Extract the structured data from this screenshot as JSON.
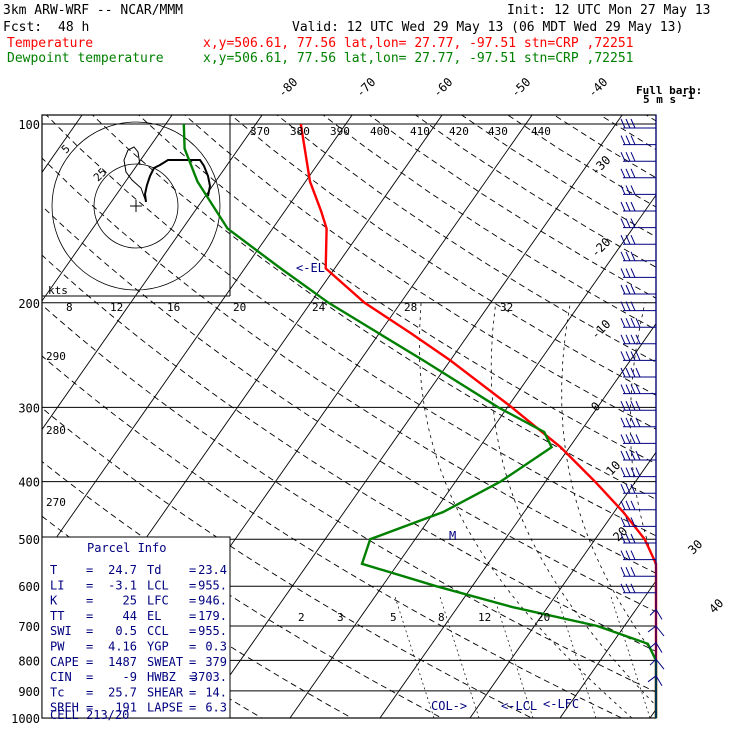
{
  "header": {
    "model": "3km ARW-WRF -- NCAR/MMM",
    "init": "Init: 12 UTC Mon 27 May 13",
    "fcst_label": "Fcst:",
    "fcst_value": "48 h",
    "valid": "Valid: 12 UTC Wed 29 May 13 (06 MDT Wed 29 May 13)",
    "temperature_label": "Temperature",
    "temperature_info": "x,y=506.61, 77.56   lat,lon= 27.77, -97.51   stn=CRP ,72251",
    "dewpoint_label": "Dewpoint temperature",
    "dewpoint_info": "x,y=506.61, 77.56   lat,lon= 27.77, -97.51   stn=CRP ,72251"
  },
  "colors": {
    "temperature": "#ff0000",
    "dewpoint": "#008000",
    "frame": "#000000",
    "wind_barbs": "#000080",
    "parcel_text": "#000080"
  },
  "wind_legend": {
    "line1": "Full barb:",
    "line2": "5 m s",
    "exponent": "-1"
  },
  "chart_data": {
    "type": "skew-T log-P sounding",
    "pressure_levels_hPa": [
      100,
      200,
      300,
      400,
      500,
      600,
      700,
      800,
      900,
      1000
    ],
    "pressure_tick_labels": [
      "100",
      "200",
      "300",
      "400",
      "500",
      "600",
      "700",
      "800",
      "900",
      "1000"
    ],
    "isotherm_labels": [
      "-80",
      "-70",
      "-60",
      "-50",
      "-40",
      "-30",
      "-20",
      "-10",
      "0",
      "10",
      "20",
      "30",
      "40"
    ],
    "theta_labels": [
      "370",
      "380",
      "390",
      "400",
      "410",
      "420",
      "430",
      "440",
      "290",
      "280",
      "270"
    ],
    "mixing_ratio_labels": [
      "2",
      "3",
      "5",
      "8",
      "12",
      "20"
    ],
    "hodograph": {
      "units_label": "kts",
      "ring_labels": [
        "5",
        "25"
      ],
      "speed_labels": [
        "8",
        "12",
        "16",
        "20",
        "24",
        "28",
        "32"
      ]
    },
    "annotations": [
      "<-EL",
      "<-LCL",
      "<-LFC",
      "COL->",
      "M"
    ],
    "series": [
      {
        "name": "Temperature",
        "color": "#ff0000",
        "points": [
          {
            "p": 1000,
            "t": 24.7
          },
          {
            "p": 950,
            "t": 21.5
          },
          {
            "p": 900,
            "t": 19.0
          },
          {
            "p": 850,
            "t": 16.4
          },
          {
            "p": 800,
            "t": 14.5
          },
          {
            "p": 750,
            "t": 12.0
          },
          {
            "p": 700,
            "t": 9.5
          },
          {
            "p": 650,
            "t": 6.8
          },
          {
            "p": 600,
            "t": 3.5
          },
          {
            "p": 550,
            "t": -0.5
          },
          {
            "p": 500,
            "t": -4.5
          },
          {
            "p": 450,
            "t": -9.0
          },
          {
            "p": 400,
            "t": -14.5
          },
          {
            "p": 350,
            "t": -21.0
          },
          {
            "p": 300,
            "t": -29.5
          },
          {
            "p": 250,
            "t": -40.0
          },
          {
            "p": 225,
            "t": -46.5
          },
          {
            "p": 200,
            "t": -54.0
          },
          {
            "p": 175,
            "t": -61.0
          },
          {
            "p": 150,
            "t": -64.0
          },
          {
            "p": 140,
            "t": -66.0
          },
          {
            "p": 125,
            "t": -69.5
          },
          {
            "p": 100,
            "t": -75.0
          }
        ]
      },
      {
        "name": "Dewpoint temperature",
        "color": "#008000",
        "points": [
          {
            "p": 1000,
            "t": 23.4
          },
          {
            "p": 950,
            "t": 19.5
          },
          {
            "p": 900,
            "t": 16.5
          },
          {
            "p": 850,
            "t": 13.0
          },
          {
            "p": 800,
            "t": 10.0
          },
          {
            "p": 750,
            "t": 4.0
          },
          {
            "p": 700,
            "t": -3.0
          },
          {
            "p": 650,
            "t": -14.0
          },
          {
            "p": 600,
            "t": -24.0
          },
          {
            "p": 550,
            "t": -34.0
          },
          {
            "p": 500,
            "t": -35.0
          },
          {
            "p": 450,
            "t": -29.0
          },
          {
            "p": 400,
            "t": -25.0
          },
          {
            "p": 350,
            "t": -22.0
          },
          {
            "p": 330,
            "t": -24.0
          },
          {
            "p": 300,
            "t": -31.0
          },
          {
            "p": 250,
            "t": -43.0
          },
          {
            "p": 200,
            "t": -58.0
          },
          {
            "p": 175,
            "t": -66.0
          },
          {
            "p": 150,
            "t": -75.0
          },
          {
            "p": 125,
            "t": -82.0
          },
          {
            "p": 110,
            "t": -86.0
          },
          {
            "p": 100,
            "t": -88.0
          }
        ]
      }
    ]
  },
  "parcel": {
    "title": "Parcel Info",
    "rows": [
      {
        "k1": "T",
        "v1": "24.7",
        "k2": "Td",
        "v2": "23.4"
      },
      {
        "k1": "LI",
        "v1": "-3.1",
        "k2": "LCL",
        "v2": "955."
      },
      {
        "k1": "K",
        "v1": "25",
        "k2": "LFC",
        "v2": "946."
      },
      {
        "k1": "TT",
        "v1": "44",
        "k2": "EL",
        "v2": "179."
      },
      {
        "k1": "SWI",
        "v1": "0.5",
        "k2": "CCL",
        "v2": "955."
      },
      {
        "k1": "PW",
        "v1": "4.16",
        "k2": "YGP",
        "v2": "0.3"
      },
      {
        "k1": "CAPE",
        "v1": "1487",
        "k2": "SWEAT",
        "v2": "379"
      },
      {
        "k1": "CIN",
        "v1": "-9",
        "k2": "HWBZ",
        "v2": "3703."
      },
      {
        "k1": "Tc",
        "v1": "25.7",
        "k2": "SHEAR",
        "v2": "14."
      },
      {
        "k1": "SREH",
        "v1": "191",
        "k2": "LAPSE",
        "v2": "6.3"
      }
    ],
    "cell_label": "CELL",
    "cell_value": "213/20"
  }
}
